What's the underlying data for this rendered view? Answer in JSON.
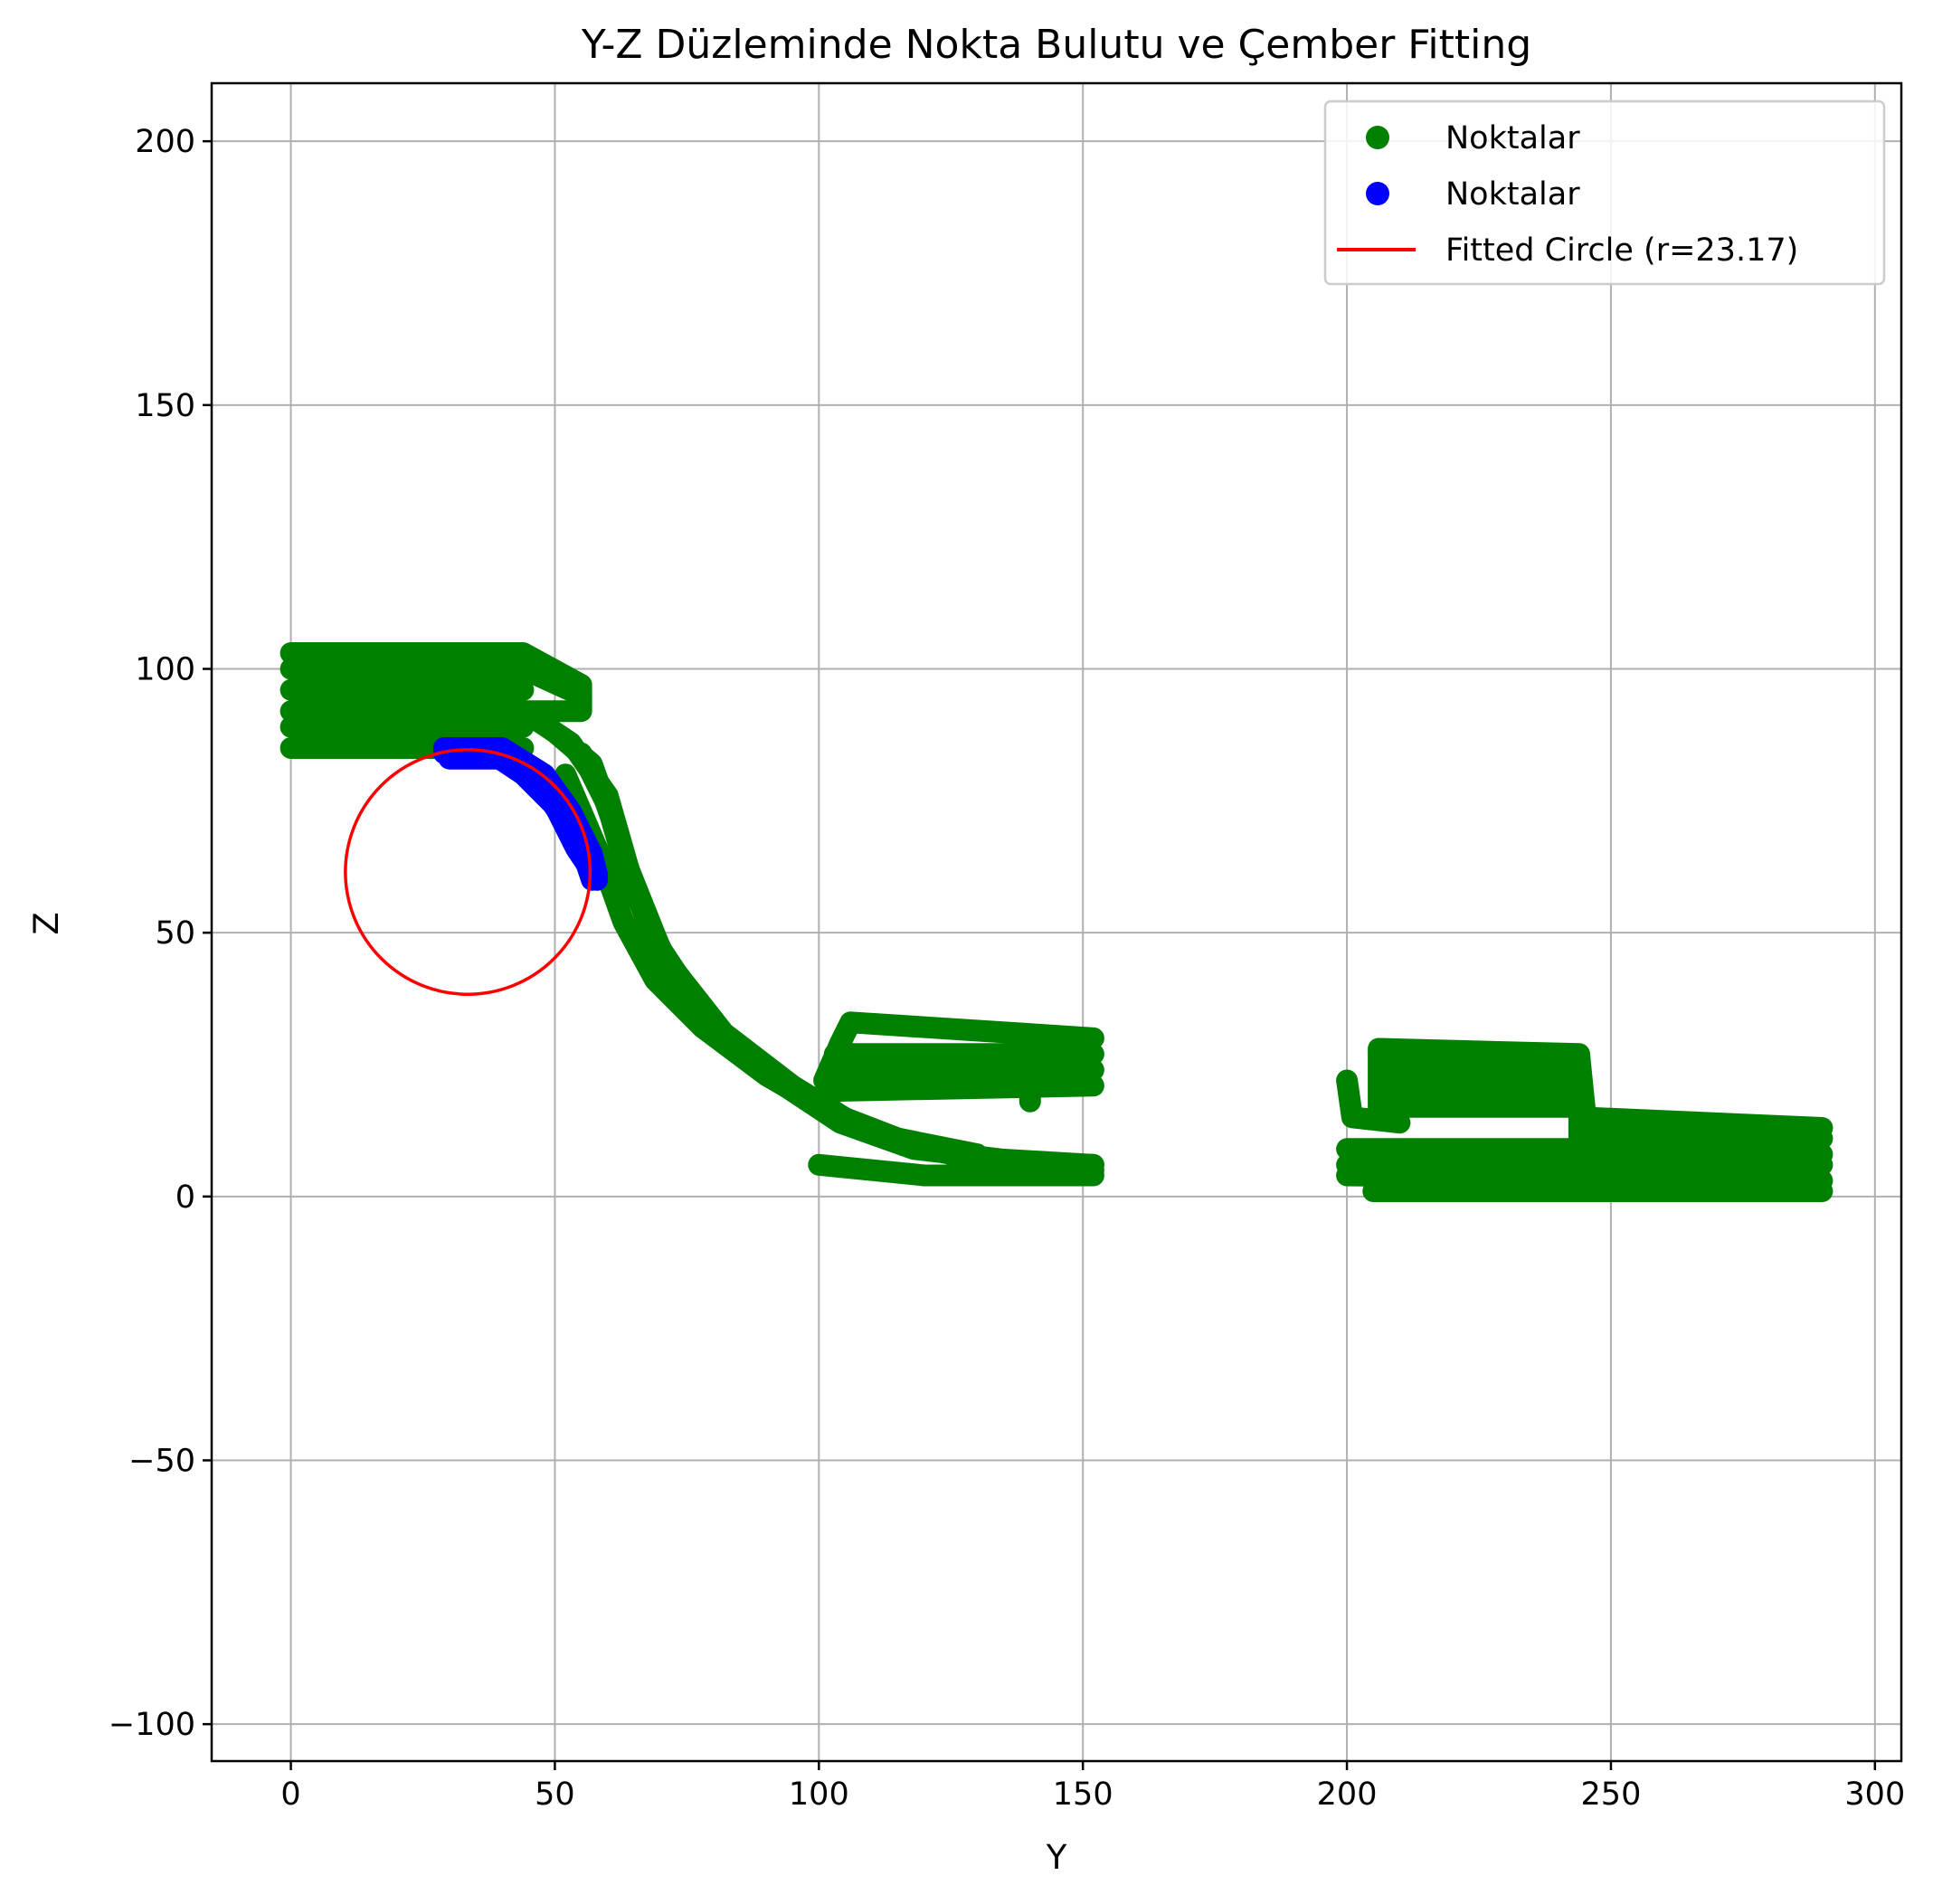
{
  "chart_data": {
    "type": "scatter",
    "title": "Y-Z Düzleminde Nokta Bulutu ve Çember Fitting",
    "xlabel": "Y",
    "ylabel": "Z",
    "xlim": [
      -15,
      305
    ],
    "ylim": [
      -107,
      211
    ],
    "xticks": [
      0,
      50,
      100,
      150,
      200,
      250,
      300
    ],
    "yticks": [
      -100,
      -50,
      0,
      50,
      100,
      150,
      200
    ],
    "xtick_labels": [
      "0",
      "50",
      "100",
      "150",
      "200",
      "250",
      "300"
    ],
    "ytick_labels": [
      "−100",
      "−50",
      "0",
      "50",
      "100",
      "150",
      "200"
    ],
    "grid": true,
    "legend_position": "top-right",
    "series": [
      {
        "name": "Noktalar",
        "kind": "scatter",
        "color": "#008000",
        "segments": [
          [
            [
              0,
              103
            ],
            [
              44,
              103
            ],
            [
              55,
              97
            ],
            [
              55,
              92
            ],
            [
              44,
              92
            ],
            [
              0,
              92
            ]
          ],
          [
            [
              0,
              96
            ],
            [
              44,
              96
            ]
          ],
          [
            [
              0,
              89
            ],
            [
              44,
              89
            ]
          ],
          [
            [
              0,
              85
            ],
            [
              44,
              85
            ]
          ],
          [
            [
              0,
              100
            ],
            [
              44,
              100
            ],
            [
              55,
              95
            ]
          ],
          [
            [
              44,
              92
            ],
            [
              53,
              86
            ],
            [
              60,
              76
            ],
            [
              64,
              62
            ],
            [
              70,
              47
            ],
            [
              80,
              32
            ],
            [
              92,
              22
            ],
            [
              104,
              14
            ],
            [
              118,
              9
            ],
            [
              135,
              7
            ],
            [
              152,
              6
            ]
          ],
          [
            [
              50,
              88
            ],
            [
              57,
              82
            ],
            [
              62,
              68
            ],
            [
              67,
              53
            ],
            [
              74,
              39
            ],
            [
              85,
              28
            ],
            [
              97,
              19
            ],
            [
              110,
              12
            ],
            [
              125,
              8
            ],
            [
              140,
              6
            ],
            [
              152,
              6
            ]
          ],
          [
            [
              55,
              84
            ],
            [
              60,
              74
            ],
            [
              64,
              60
            ],
            [
              71,
              45
            ],
            [
              82,
              31
            ],
            [
              95,
              21
            ],
            [
              108,
              13
            ],
            [
              122,
              9
            ],
            [
              140,
              5
            ],
            [
              152,
              5
            ]
          ],
          [
            [
              52,
              80
            ],
            [
              58,
              66
            ],
            [
              63,
              52
            ],
            [
              69,
              41
            ],
            [
              78,
              32
            ],
            [
              90,
              23
            ],
            [
              102,
              16
            ],
            [
              115,
              11
            ],
            [
              130,
              8
            ]
          ],
          [
            [
              100,
              6
            ],
            [
              120,
              4
            ],
            [
              140,
              4
            ],
            [
              152,
              4
            ]
          ],
          [
            [
              101,
              22
            ],
            [
              104,
              29
            ],
            [
              106,
              33
            ],
            [
              152,
              30
            ]
          ],
          [
            [
              103,
              27
            ],
            [
              152,
              27
            ]
          ],
          [
            [
              103,
              24
            ],
            [
              152,
              24
            ]
          ],
          [
            [
              102,
              20
            ],
            [
              152,
              21
            ]
          ],
          [
            [
              101,
              17
            ],
            [
              103,
              20
            ]
          ],
          [
            [
              140,
              18
            ],
            [
              140,
              21
            ]
          ],
          [
            [
              200,
              22
            ],
            [
              201,
              15
            ],
            [
              210,
              14
            ]
          ],
          [
            [
              206,
              28
            ],
            [
              244,
              27
            ],
            [
              245,
              17
            ],
            [
              206,
              17
            ],
            [
              206,
              28
            ]
          ],
          [
            [
              207,
              24
            ],
            [
              244,
              24
            ]
          ],
          [
            [
              207,
              21
            ],
            [
              244,
              21
            ]
          ],
          [
            [
              200,
              9
            ],
            [
              244,
              9
            ],
            [
              244,
              15
            ],
            [
              290,
              13
            ]
          ],
          [
            [
              200,
              6
            ],
            [
              290,
              6
            ]
          ],
          [
            [
              200,
              4
            ],
            [
              290,
              3
            ]
          ],
          [
            [
              245,
              11
            ],
            [
              290,
              11
            ]
          ],
          [
            [
              245,
              8
            ],
            [
              290,
              8
            ]
          ],
          [
            [
              205,
              1
            ],
            [
              290,
              1
            ]
          ]
        ]
      },
      {
        "name": "Noktalar",
        "kind": "scatter",
        "color": "#0000ff",
        "segments": [
          [
            [
              29,
              84
            ],
            [
              38,
              84
            ],
            [
              44,
              80
            ],
            [
              50,
              74
            ],
            [
              54,
              66
            ],
            [
              58,
              60
            ]
          ],
          [
            [
              30,
              83
            ],
            [
              40,
              83
            ],
            [
              47,
              78
            ],
            [
              52,
              71
            ],
            [
              56,
              63
            ],
            [
              57,
              60
            ]
          ],
          [
            [
              29,
              85
            ],
            [
              40,
              85
            ],
            [
              48,
              80
            ],
            [
              53,
              73
            ],
            [
              57,
              65
            ],
            [
              58,
              61
            ]
          ]
        ]
      },
      {
        "name": "Fitted Circle (r=23.17)",
        "kind": "line",
        "color": "#ff0000",
        "center": [
          33.5,
          61.5
        ],
        "radius": 23.17
      }
    ]
  }
}
